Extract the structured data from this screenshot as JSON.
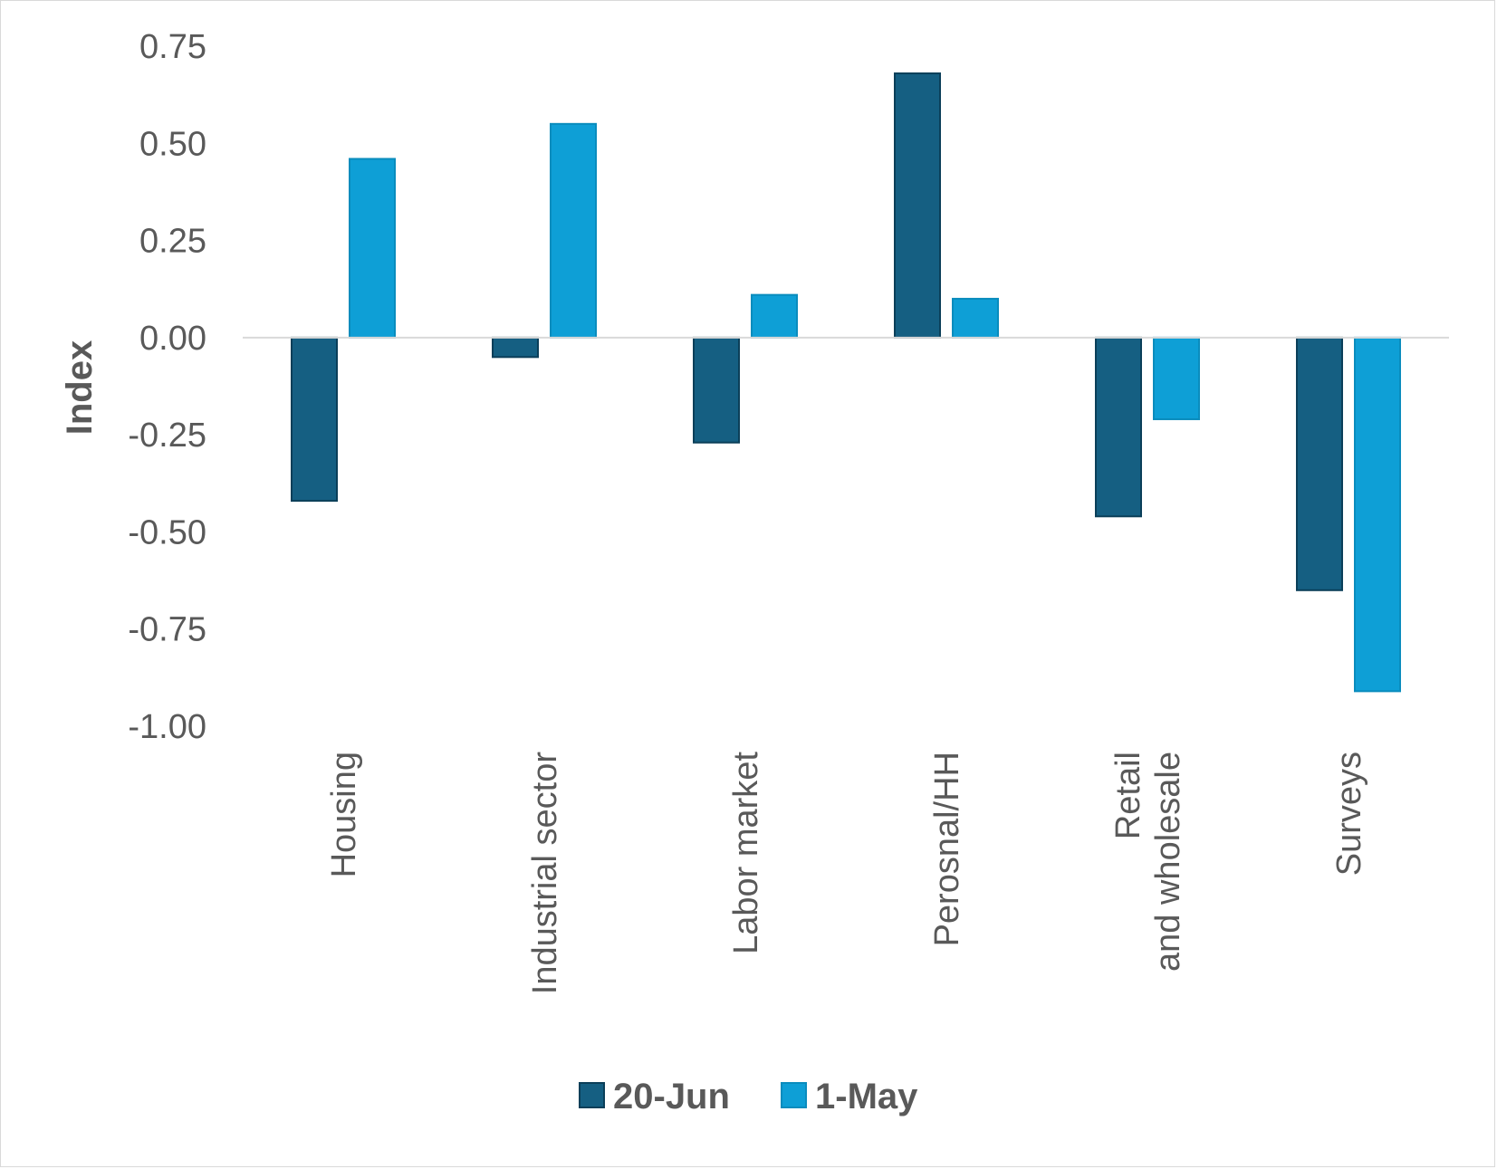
{
  "chart_data": {
    "type": "bar",
    "categories": [
      "Housing",
      "Industrial sector",
      "Labor market",
      "Perosnal/HH",
      "Retail\nand wholesale",
      "Surveys"
    ],
    "series": [
      {
        "name": "20-Jun",
        "color": "#155f82",
        "values": [
          -0.42,
          -0.05,
          -0.27,
          0.68,
          -0.46,
          -0.65
        ]
      },
      {
        "name": "1-May",
        "color": "#0e9fd6",
        "values": [
          0.46,
          0.55,
          0.11,
          0.1,
          -0.21,
          -0.91
        ]
      }
    ],
    "title": "",
    "xlabel": "",
    "ylabel": "Index",
    "ylim": [
      -1.0,
      0.75
    ],
    "yticks": [
      0.75,
      0.5,
      0.25,
      0.0,
      -0.25,
      -0.5,
      -0.75,
      -1.0
    ],
    "ytick_labels": [
      "0.75",
      "0.50",
      "0.25",
      "0.00",
      "-0.25",
      "-0.50",
      "-0.75",
      "-1.00"
    ],
    "grid": false,
    "legend": "bottom"
  }
}
